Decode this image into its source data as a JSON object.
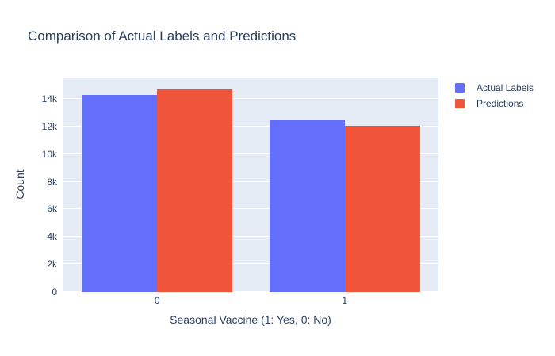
{
  "title": "Comparison of Actual Labels and Predictions",
  "chart_data": {
    "type": "bar",
    "title": "Comparison of Actual Labels and Predictions",
    "categories": [
      "0",
      "1"
    ],
    "series": [
      {
        "name": "Actual Labels",
        "color": "#636efa",
        "values": [
          14300,
          12450
        ]
      },
      {
        "name": "Predictions",
        "color": "#ef553b",
        "values": [
          14700,
          12050
        ]
      }
    ],
    "xlabel": "Seasonal Vaccine (1: Yes, 0: No)",
    "ylabel": "Count",
    "ylim": [
      0,
      15550
    ],
    "yticks": [
      {
        "value": 0,
        "label": "0"
      },
      {
        "value": 2000,
        "label": "2k"
      },
      {
        "value": 4000,
        "label": "4k"
      },
      {
        "value": 6000,
        "label": "6k"
      },
      {
        "value": 8000,
        "label": "8k"
      },
      {
        "value": 10000,
        "label": "10k"
      },
      {
        "value": 12000,
        "label": "12k"
      },
      {
        "value": 14000,
        "label": "14k"
      }
    ],
    "grid": true,
    "legend_position": "top-right-outside",
    "plot_bg": "#e5ecf6",
    "grid_color": "#ffffff",
    "text_color": "#2a3f5f"
  }
}
